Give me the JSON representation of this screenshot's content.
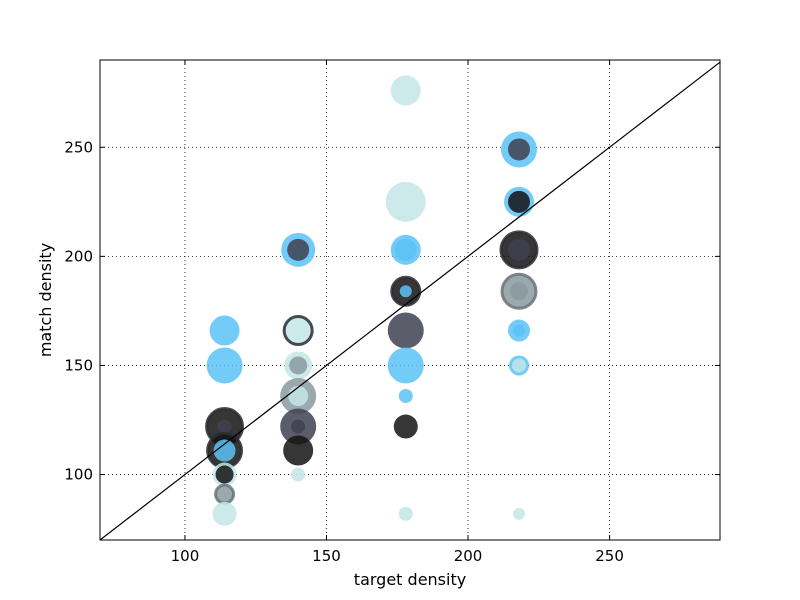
{
  "chart_data": {
    "type": "scatter",
    "xlabel": "target density",
    "ylabel": "match density",
    "xlim": [
      70,
      289
    ],
    "ylim": [
      70,
      290
    ],
    "xticks": [
      100,
      150,
      200,
      250
    ],
    "yticks": [
      100,
      150,
      200,
      250
    ],
    "grid": true,
    "grid_style": "dotted",
    "reference_line": "y = x",
    "colors": {
      "light": "#c3e6e6",
      "blue": "#5ac2f7",
      "dark": "#131313",
      "slate": "#3f4150",
      "gray": "#8a9aa0",
      "line": "#000000"
    },
    "points": [
      {
        "x": 114,
        "y": 166,
        "size": 15,
        "color": "blue",
        "ring": false
      },
      {
        "x": 114,
        "y": 150,
        "size": 18,
        "color": "blue",
        "ring": false
      },
      {
        "x": 114,
        "y": 122,
        "size": 18,
        "color": "dark",
        "ring": true
      },
      {
        "x": 114,
        "y": 122,
        "size": 7,
        "color": "slate",
        "ring": false
      },
      {
        "x": 114,
        "y": 111,
        "size": 17,
        "color": "dark",
        "ring": true
      },
      {
        "x": 114,
        "y": 111,
        "size": 11,
        "color": "blue",
        "ring": false
      },
      {
        "x": 114,
        "y": 100,
        "size": 12,
        "color": "light",
        "ring": false
      },
      {
        "x": 114,
        "y": 100,
        "size": 9,
        "color": "dark",
        "ring": false
      },
      {
        "x": 114,
        "y": 91,
        "size": 9,
        "color": "gray",
        "ring": true
      },
      {
        "x": 114,
        "y": 82,
        "size": 12,
        "color": "light",
        "ring": false
      },
      {
        "x": 140,
        "y": 203,
        "size": 17,
        "color": "blue",
        "ring": false
      },
      {
        "x": 140,
        "y": 203,
        "size": 11,
        "color": "slate",
        "ring": false
      },
      {
        "x": 140,
        "y": 166,
        "size": 14,
        "color": "light",
        "ring": true
      },
      {
        "x": 140,
        "y": 150,
        "size": 14,
        "color": "light",
        "ring": false
      },
      {
        "x": 140,
        "y": 150,
        "size": 9,
        "color": "gray",
        "ring": false
      },
      {
        "x": 140,
        "y": 136,
        "size": 18,
        "color": "gray",
        "ring": false
      },
      {
        "x": 140,
        "y": 136,
        "size": 10,
        "color": "light",
        "ring": false
      },
      {
        "x": 140,
        "y": 122,
        "size": 18,
        "color": "slate",
        "ring": false
      },
      {
        "x": 140,
        "y": 122,
        "size": 7,
        "color": "slate",
        "ring": false
      },
      {
        "x": 140,
        "y": 111,
        "size": 15,
        "color": "dark",
        "ring": false
      },
      {
        "x": 140,
        "y": 100,
        "size": 7,
        "color": "light",
        "ring": false
      },
      {
        "x": 178,
        "y": 276,
        "size": 15,
        "color": "light",
        "ring": false
      },
      {
        "x": 178,
        "y": 225,
        "size": 20,
        "color": "light",
        "ring": false
      },
      {
        "x": 178,
        "y": 203,
        "size": 15,
        "color": "blue",
        "ring": false
      },
      {
        "x": 178,
        "y": 203,
        "size": 11,
        "color": "blue",
        "ring": false
      },
      {
        "x": 178,
        "y": 184,
        "size": 14,
        "color": "dark",
        "ring": true
      },
      {
        "x": 178,
        "y": 184,
        "size": 6,
        "color": "blue",
        "ring": false
      },
      {
        "x": 178,
        "y": 166,
        "size": 18,
        "color": "slate",
        "ring": false
      },
      {
        "x": 178,
        "y": 150,
        "size": 18,
        "color": "blue",
        "ring": false
      },
      {
        "x": 178,
        "y": 136,
        "size": 7,
        "color": "blue",
        "ring": false
      },
      {
        "x": 178,
        "y": 122,
        "size": 12,
        "color": "dark",
        "ring": false
      },
      {
        "x": 178,
        "y": 82,
        "size": 7,
        "color": "light",
        "ring": false
      },
      {
        "x": 218,
        "y": 249,
        "size": 18,
        "color": "blue",
        "ring": false
      },
      {
        "x": 218,
        "y": 249,
        "size": 11,
        "color": "slate",
        "ring": false
      },
      {
        "x": 218,
        "y": 225,
        "size": 15,
        "color": "blue",
        "ring": false
      },
      {
        "x": 218,
        "y": 225,
        "size": 11,
        "color": "dark",
        "ring": false
      },
      {
        "x": 218,
        "y": 203,
        "size": 18,
        "color": "dark",
        "ring": true
      },
      {
        "x": 218,
        "y": 203,
        "size": 11,
        "color": "slate",
        "ring": false
      },
      {
        "x": 218,
        "y": 184,
        "size": 17,
        "color": "gray",
        "ring": true
      },
      {
        "x": 218,
        "y": 184,
        "size": 9,
        "color": "gray",
        "ring": false
      },
      {
        "x": 218,
        "y": 166,
        "size": 11,
        "color": "blue",
        "ring": false
      },
      {
        "x": 218,
        "y": 166,
        "size": 6,
        "color": "blue",
        "ring": false
      },
      {
        "x": 218,
        "y": 150,
        "size": 10,
        "color": "blue",
        "ring": false
      },
      {
        "x": 218,
        "y": 150,
        "size": 7,
        "color": "light",
        "ring": false
      },
      {
        "x": 218,
        "y": 82,
        "size": 6,
        "color": "light",
        "ring": false
      }
    ]
  }
}
